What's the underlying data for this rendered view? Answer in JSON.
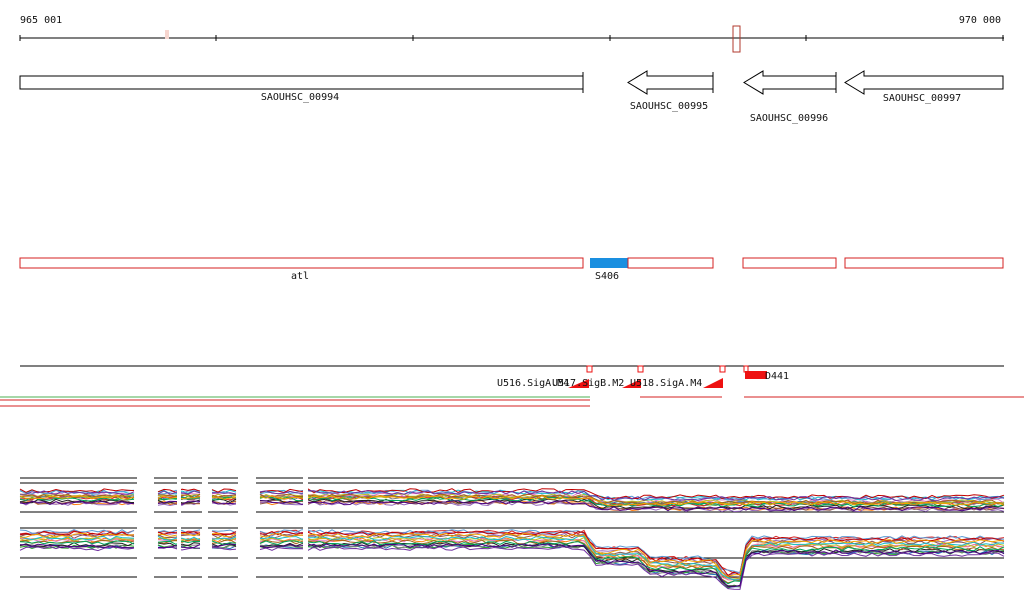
{
  "scale": {
    "start_label": "965 001",
    "end_label": "970 000"
  },
  "genes": [
    {
      "id": "SAOUHSC_00994",
      "strand": "+"
    },
    {
      "id": "SAOUHSC_00995",
      "strand": "-"
    },
    {
      "id": "SAOUHSC_00996",
      "strand": "-"
    },
    {
      "id": "SAOUHSC_00997",
      "strand": "-"
    }
  ],
  "transcripts": [
    {
      "label": "atl"
    },
    {
      "label": "S406"
    }
  ],
  "promoters": [
    {
      "label": "U516.SigA.M4"
    },
    {
      "label": "U517.SigB.M2"
    },
    {
      "label": "U518.SigA.M4"
    }
  ],
  "terminator": {
    "label": "D441"
  },
  "colors": {
    "gene_outline": "#000000",
    "transcript_outline": "#d42020",
    "highlight_segment": "#1a8fe0",
    "promoter": "#ee1111",
    "selection": "#b03a2e",
    "lane_green": "#4caf50",
    "lane_red": "#d42020"
  },
  "expression_series_colors": [
    "#1f77b4",
    "#ff7f0e",
    "#2ca02c",
    "#d62728",
    "#9467bd",
    "#8c564b",
    "#e377c2",
    "#7f7f7f",
    "#bcbd22",
    "#17becf",
    "#222222",
    "#a6611a",
    "#5b9bd5",
    "#c00000",
    "#7030a0",
    "#00a65a",
    "#f4a300",
    "#4b0082"
  ]
}
